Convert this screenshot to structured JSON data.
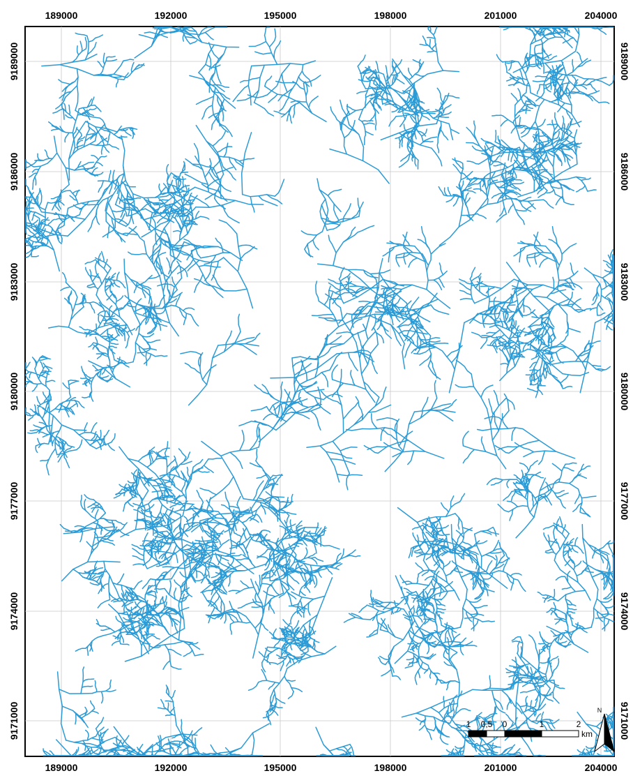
{
  "map": {
    "x_ticks": [
      "189000",
      "192000",
      "195000",
      "198000",
      "201000",
      "204000"
    ],
    "y_ticks": [
      "9189000",
      "9186000",
      "9183000",
      "9180000",
      "9177000",
      "9174000",
      "9171000"
    ],
    "stream_color": "#2b9bd6",
    "grid": true
  },
  "scale_bar": {
    "labels": [
      "1",
      "0,5",
      "0",
      "1",
      "2"
    ],
    "unit": "km"
  },
  "north_arrow": {
    "label": "N"
  }
}
